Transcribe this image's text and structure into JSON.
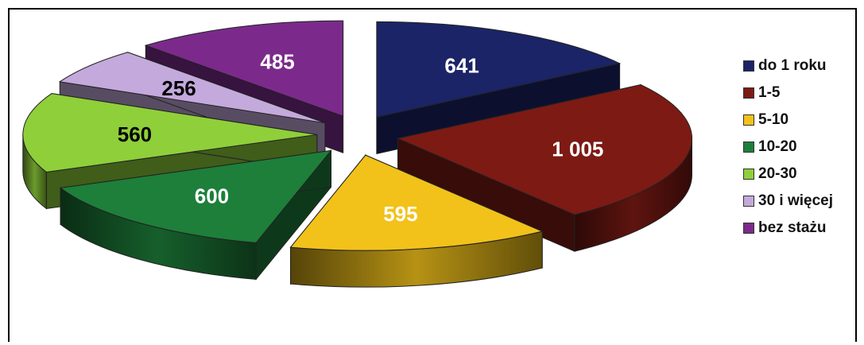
{
  "chart_data": {
    "type": "pie",
    "variant": "3d-exploded",
    "title": "",
    "legend_position": "right",
    "categories": [
      "do 1 roku",
      "1-5",
      "5-10",
      "10-20",
      "20-30",
      "30 i więcej",
      "bez stażu"
    ],
    "values": [
      641,
      1005,
      595,
      600,
      560,
      256,
      485
    ],
    "value_labels": [
      "641",
      "1 005",
      "595",
      "600",
      "560",
      "256",
      "485"
    ],
    "colors": [
      "#1b2466",
      "#7d1a14",
      "#f2c21a",
      "#1d7f3a",
      "#8fcf3a",
      "#c4a9dc",
      "#7b2a8c"
    ],
    "label_colors": [
      "#ffffff",
      "#ffffff",
      "#ffffff",
      "#ffffff",
      "#000000",
      "#000000",
      "#ffffff"
    ]
  }
}
